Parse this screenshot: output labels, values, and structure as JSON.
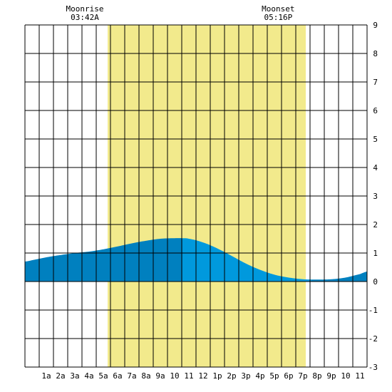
{
  "chart_data": {
    "type": "area",
    "title": "",
    "xlabel": "",
    "ylabel": "",
    "x_range_hours": [
      -0.5,
      23.5
    ],
    "ylim": [
      -3,
      9
    ],
    "x_tick_labels": [
      "1a",
      "2a",
      "3a",
      "4a",
      "5a",
      "6a",
      "7a",
      "8a",
      "9a",
      "10",
      "11",
      "12",
      "1p",
      "2p",
      "3p",
      "4p",
      "5p",
      "6p",
      "7p",
      "8p",
      "9p",
      "10",
      "11"
    ],
    "x_tick_hours": [
      1,
      2,
      3,
      4,
      5,
      6,
      7,
      8,
      9,
      10,
      11,
      12,
      13,
      14,
      15,
      16,
      17,
      18,
      19,
      20,
      21,
      22,
      23
    ],
    "y_tick_values": [
      9,
      8,
      7,
      6,
      5,
      4,
      3,
      2,
      1,
      0,
      -1,
      -2,
      -3
    ],
    "y_tick_labels": [
      "9",
      "8",
      "7",
      "6",
      "5",
      "4",
      "3",
      "2",
      "1",
      "0",
      "-1",
      "-2",
      "-3"
    ],
    "daylight": {
      "start_hour": 5.3,
      "end_hour": 19.2,
      "color": "#f2ea8c"
    },
    "moonrise": {
      "label": "Moonrise",
      "time": "03:42A"
    },
    "moonset": {
      "label": "Moonset",
      "time": "05:16P"
    },
    "tide_turn_hour": 10.55,
    "series": [
      {
        "x": [
          -0.5,
          0,
          1,
          2,
          3,
          4,
          5,
          6,
          7,
          8,
          9,
          10,
          10.5,
          11,
          12,
          13,
          14,
          15,
          16,
          17,
          18,
          19,
          20,
          21,
          22,
          23,
          23.5
        ],
        "y": [
          0.7,
          0.75,
          0.85,
          0.93,
          1.0,
          1.05,
          1.13,
          1.23,
          1.34,
          1.43,
          1.5,
          1.52,
          1.52,
          1.5,
          1.37,
          1.16,
          0.9,
          0.63,
          0.41,
          0.24,
          0.14,
          0.08,
          0.07,
          0.08,
          0.14,
          0.26,
          0.35
        ]
      }
    ],
    "colors": {
      "rising": "#0080bf",
      "falling": "#0099dd",
      "grid": "#000000",
      "background": "#ffffff"
    }
  }
}
